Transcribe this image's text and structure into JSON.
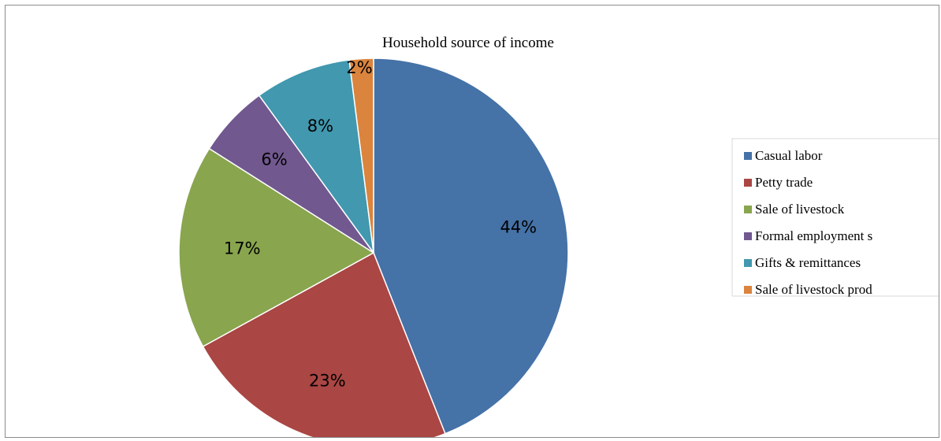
{
  "chart_data": {
    "type": "pie",
    "title": "Household source of income",
    "legend_position": "right",
    "slices": [
      {
        "label": "Casual labor",
        "legend_text": "Casual labor",
        "value": 44,
        "display": "44%",
        "color": "#4572A7"
      },
      {
        "label": "Petty trade",
        "legend_text": "Petty trade",
        "value": 23,
        "display": "23%",
        "color": "#AA4643"
      },
      {
        "label": "Sale of livestock",
        "legend_text": "Sale of livestock",
        "value": 17,
        "display": "17%",
        "color": "#89A54E"
      },
      {
        "label": "Formal employment s",
        "legend_text": "Formal employment s",
        "value": 6,
        "display": "6%",
        "color": "#71588F"
      },
      {
        "label": "Gifts & remittances",
        "legend_text": "Gifts & remittances",
        "value": 8,
        "display": "8%",
        "color": "#4198AF"
      },
      {
        "label": "Sale of livestock prod",
        "legend_text": "Sale of livestock prod",
        "value": 2,
        "display": "2%",
        "color": "#DB843D"
      }
    ]
  }
}
